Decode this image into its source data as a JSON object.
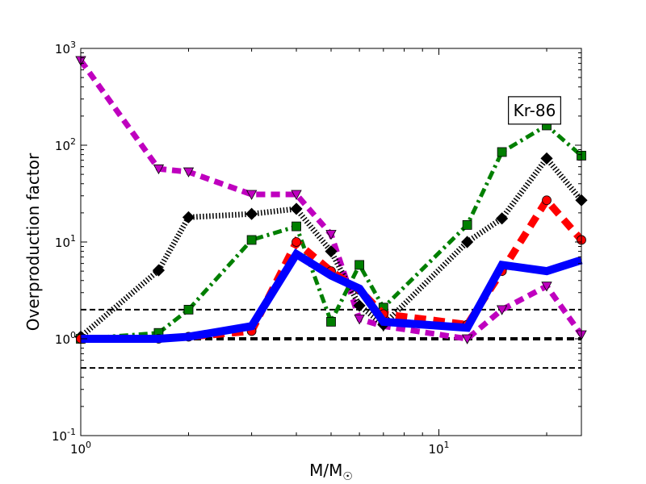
{
  "chart_data": {
    "type": "line",
    "title": "",
    "xlabel": "M/M",
    "xlabel_sub": "☉",
    "ylabel": "Overproduction factor",
    "xscale": "log",
    "yscale": "log",
    "xlim": [
      1,
      25
    ],
    "ylim": [
      0.1,
      1000
    ],
    "grid": false,
    "legend": "none",
    "x_ticks": [
      {
        "value": 1,
        "base": "10",
        "exp": "0"
      },
      {
        "value": 10,
        "base": "10",
        "exp": "1"
      }
    ],
    "y_ticks": [
      {
        "value": 0.1,
        "base": "10",
        "exp": "-1"
      },
      {
        "value": 1,
        "base": "10",
        "exp": "0"
      },
      {
        "value": 10,
        "base": "10",
        "exp": "1"
      },
      {
        "value": 100,
        "base": "10",
        "exp": "2"
      },
      {
        "value": 1000,
        "base": "10",
        "exp": "3"
      }
    ],
    "annotation": {
      "text": "Kr-86",
      "x": 18.5,
      "y": 200
    },
    "reference_lines": [
      {
        "y": 2.0,
        "color": "#000000",
        "dash": "dashed",
        "width": 2
      },
      {
        "y": 1.0,
        "color": "#000000",
        "dash": "dashed",
        "width": 4
      },
      {
        "y": 0.5,
        "color": "#000000",
        "dash": "dashed",
        "width": 2
      }
    ],
    "series": [
      {
        "color": "#bf00bf",
        "marker": "triangle-down",
        "dash": "dashed",
        "width": 7,
        "x": [
          1.0,
          1.65,
          2.0,
          3.0,
          4.0,
          5.0,
          6.0,
          7.0,
          12.0,
          15.0,
          20.0,
          25.0
        ],
        "y": [
          750,
          57,
          53,
          31,
          31,
          12,
          1.6,
          1.35,
          1.0,
          2.0,
          3.5,
          1.1
        ]
      },
      {
        "color": "#000000",
        "marker": "diamond",
        "dash": "dotted",
        "width": 7,
        "x": [
          1.0,
          1.65,
          2.0,
          3.0,
          4.0,
          5.0,
          6.0,
          7.0,
          12.0,
          15.0,
          20.0,
          25.0
        ],
        "y": [
          1.05,
          5.1,
          18,
          19.5,
          22,
          8,
          2.2,
          1.4,
          10,
          17.5,
          73,
          27
        ]
      },
      {
        "color": "#007f00",
        "marker": "square",
        "dash": "dashdot",
        "width": 5,
        "x": [
          1.0,
          1.65,
          2.0,
          3.0,
          4.0,
          5.0,
          6.0,
          7.0,
          12.0,
          15.0,
          20.0,
          25.0
        ],
        "y": [
          1.0,
          1.15,
          2.0,
          10.5,
          14.5,
          1.5,
          5.8,
          2.1,
          15,
          85,
          160,
          78
        ]
      },
      {
        "color": "#ff0000",
        "marker": "circle",
        "dash": "dashed",
        "width": 9,
        "x": [
          1.0,
          1.65,
          2.0,
          3.0,
          4.0,
          5.0,
          6.0,
          7.0,
          12.0,
          15.0,
          20.0,
          25.0
        ],
        "y": [
          1.0,
          1.0,
          1.05,
          1.2,
          10,
          5,
          3.2,
          1.8,
          1.4,
          5.0,
          27,
          10.5
        ]
      },
      {
        "color": "#0000ff",
        "marker": "none",
        "dash": "solid",
        "width": 10,
        "x": [
          1.0,
          1.65,
          2.0,
          3.0,
          4.0,
          5.0,
          6.0,
          7.0,
          12.0,
          15.0,
          20.0,
          25.0
        ],
        "y": [
          1.0,
          1.0,
          1.05,
          1.35,
          7.5,
          4.5,
          3.3,
          1.5,
          1.3,
          5.8,
          5.0,
          6.5
        ]
      }
    ]
  }
}
